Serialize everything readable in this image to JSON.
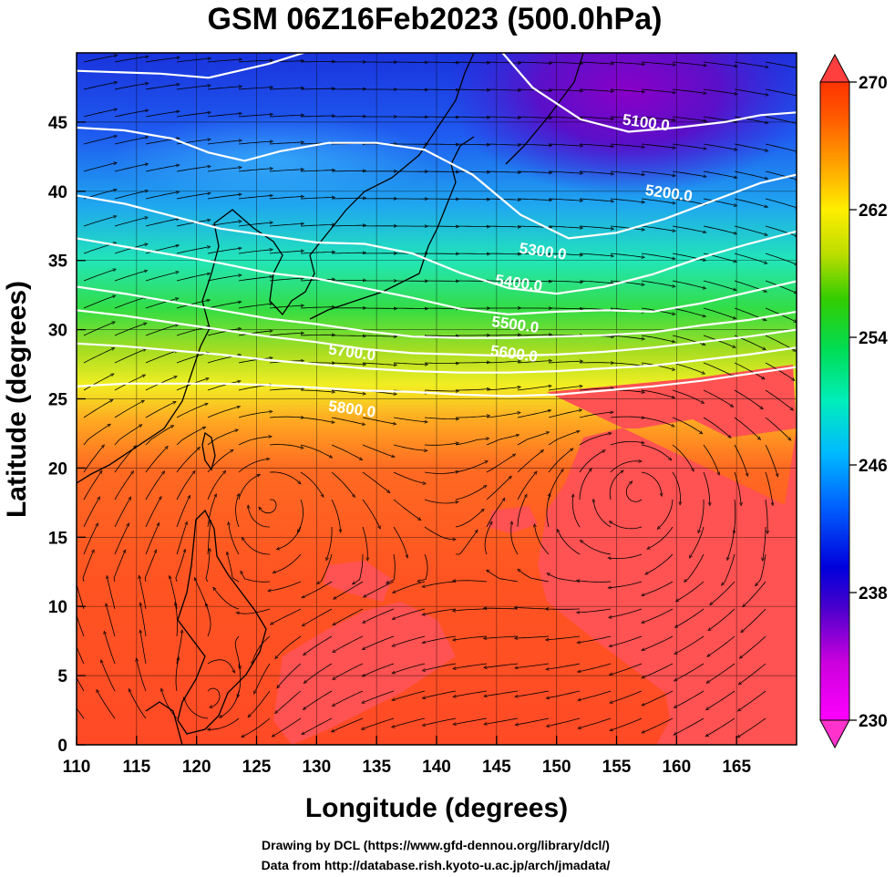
{
  "chart_data": {
    "type": "heatmap",
    "title": "GSM 06Z16Feb2023 (500.0hPa)",
    "xlabel": "Longitude (degrees)",
    "ylabel": "Latitude  (degrees)",
    "xlim": [
      110,
      170
    ],
    "ylim": [
      0,
      50
    ],
    "xticks": [
      "110",
      "115",
      "120",
      "125",
      "130",
      "135",
      "140",
      "145",
      "150",
      "155",
      "160",
      "165"
    ],
    "yticks": [
      "0",
      "5",
      "10",
      "15",
      "20",
      "25",
      "30",
      "35",
      "40",
      "45"
    ],
    "grid": true,
    "colorbar": {
      "range": [
        230,
        270
      ],
      "ticks": [
        "230",
        "238",
        "246",
        "254",
        "262",
        "270"
      ],
      "placement": "right"
    },
    "contours": [
      {
        "label": "5100.0",
        "points": [
          [
            110,
            48.7
          ],
          [
            117,
            48.5
          ],
          [
            121,
            48.2
          ],
          [
            126,
            49.2
          ],
          [
            130,
            50.3
          ]
        ],
        "points2": [
          [
            145,
            50.5
          ],
          [
            148,
            47.5
          ],
          [
            152,
            45.2
          ],
          [
            156,
            44.3
          ],
          [
            160,
            44.6
          ],
          [
            164,
            45
          ],
          [
            167,
            45.5
          ],
          [
            170,
            45.7
          ]
        ],
        "label_at": [
          157.4,
          44.6
        ]
      },
      {
        "label": "5200.0",
        "points": [
          [
            110,
            44.6
          ],
          [
            114,
            44.4
          ],
          [
            118,
            43.8
          ],
          [
            121,
            42.8
          ],
          [
            124,
            42.2
          ],
          [
            127,
            42.9
          ],
          [
            131,
            43.5
          ],
          [
            135,
            43.5
          ],
          [
            139,
            43
          ],
          [
            143,
            41.2
          ],
          [
            147,
            38.3
          ],
          [
            151,
            36.6
          ],
          [
            155,
            37
          ],
          [
            159,
            38
          ],
          [
            163,
            39.3
          ],
          [
            167,
            40.6
          ],
          [
            170,
            41.2
          ]
        ],
        "label_at": [
          159.3,
          39.5
        ]
      },
      {
        "label": "5300.0",
        "points": [
          [
            110,
            39.7
          ],
          [
            114,
            39.1
          ],
          [
            118,
            38.2
          ],
          [
            122,
            37.3
          ],
          [
            126,
            36.8
          ],
          [
            130,
            36.3
          ],
          [
            134,
            36.2
          ],
          [
            138,
            35.5
          ],
          [
            142,
            34.1
          ],
          [
            146,
            33
          ],
          [
            150,
            32.6
          ],
          [
            154,
            33.1
          ],
          [
            158,
            34
          ],
          [
            162,
            35.2
          ],
          [
            166,
            36.2
          ],
          [
            170,
            37.1
          ]
        ],
        "label_at": [
          148.8,
          35.3
        ]
      },
      {
        "label": "5400.0",
        "points": [
          [
            110,
            36.6
          ],
          [
            114,
            36
          ],
          [
            118,
            35.4
          ],
          [
            122,
            34.8
          ],
          [
            126,
            34.1
          ],
          [
            130,
            33.7
          ],
          [
            134,
            33
          ],
          [
            138,
            32.3
          ],
          [
            142,
            31.5
          ],
          [
            146,
            31.1
          ],
          [
            150,
            31.3
          ],
          [
            154,
            31.4
          ],
          [
            158,
            31.3
          ],
          [
            162,
            31.9
          ],
          [
            166,
            32.7
          ],
          [
            170,
            33.5
          ]
        ],
        "label_at": [
          146.8,
          33
        ]
      },
      {
        "label": "5500.0",
        "points": [
          [
            110,
            33.1
          ],
          [
            114,
            32.6
          ],
          [
            118,
            32
          ],
          [
            122,
            31.4
          ],
          [
            126,
            30.8
          ],
          [
            130,
            30.4
          ],
          [
            134,
            29.9
          ],
          [
            138,
            29.5
          ],
          [
            142,
            29.4
          ],
          [
            146,
            29.4
          ],
          [
            150,
            29.5
          ],
          [
            154,
            29.6
          ],
          [
            158,
            29.8
          ],
          [
            162,
            30.3
          ],
          [
            166,
            30.7
          ],
          [
            170,
            31.3
          ]
        ],
        "label_at": [
          146.5,
          30
        ]
      },
      {
        "label": "5600.0",
        "points": [
          [
            110,
            31.4
          ],
          [
            114,
            31
          ],
          [
            118,
            30.5
          ],
          [
            122,
            30
          ],
          [
            126,
            29.5
          ],
          [
            130,
            29.1
          ],
          [
            134,
            28.6
          ],
          [
            138,
            28.3
          ],
          [
            142,
            28.2
          ],
          [
            146,
            28.1
          ],
          [
            150,
            28.2
          ],
          [
            154,
            28.4
          ],
          [
            158,
            28.7
          ],
          [
            162,
            29.1
          ],
          [
            166,
            29.5
          ],
          [
            170,
            30
          ]
        ],
        "label_at": [
          146.4,
          27.9
        ]
      },
      {
        "label": "5700.0",
        "points": [
          [
            110,
            29
          ],
          [
            114,
            28.8
          ],
          [
            118,
            28.5
          ],
          [
            122,
            28.2
          ],
          [
            126,
            27.8
          ],
          [
            130,
            27.5
          ],
          [
            134,
            27.2
          ],
          [
            138,
            27
          ],
          [
            142,
            26.9
          ],
          [
            146,
            26.9
          ],
          [
            150,
            27
          ],
          [
            154,
            27.2
          ],
          [
            158,
            27.4
          ],
          [
            162,
            27.8
          ],
          [
            166,
            28.2
          ],
          [
            170,
            28.7
          ]
        ],
        "label_at": [
          132.9,
          28
        ]
      },
      {
        "label": "5800.0",
        "points": [
          [
            110,
            25.9
          ],
          [
            114,
            26.1
          ],
          [
            118,
            26.1
          ],
          [
            122,
            26.1
          ],
          [
            126,
            26
          ],
          [
            130,
            25.8
          ],
          [
            134,
            25.6
          ],
          [
            138,
            25.5
          ],
          [
            142,
            25.3
          ],
          [
            146,
            25.2
          ],
          [
            150,
            25.3
          ],
          [
            154,
            25.6
          ],
          [
            158,
            25.9
          ],
          [
            162,
            26.3
          ],
          [
            166,
            26.8
          ],
          [
            170,
            27.3
          ]
        ],
        "label_at": [
          132.9,
          23.9
        ]
      }
    ],
    "vortices": [
      [
        157,
        18.3
      ],
      [
        126,
        17.8
      ],
      [
        121,
        3
      ]
    ]
  },
  "credits": {
    "line1": "Drawing by DCL (https://www.gfd-dennou.org/library/dcl/)",
    "line2": "Data from http://database.rish.kyoto-u.ac.jp/arch/jmadata/"
  },
  "colors": {
    "scale": [
      "#ff00ff",
      "#aa00cc",
      "#0000cc",
      "#0055ff",
      "#00ccff",
      "#00ee66",
      "#99dd00",
      "#ffee00",
      "#ff9900",
      "#ff3300"
    ],
    "contour": "#ffffff",
    "coast": "#000000"
  }
}
